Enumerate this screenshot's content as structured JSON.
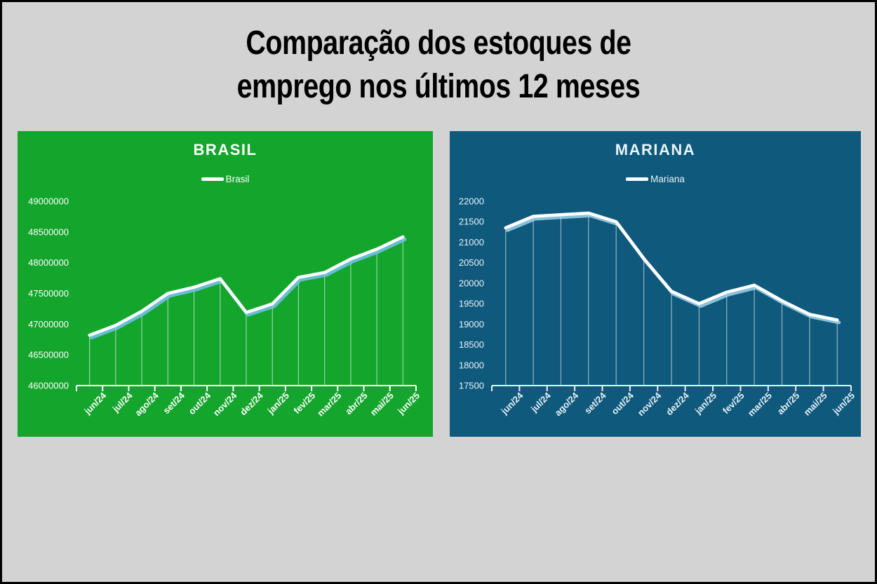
{
  "page": {
    "background": "#d3d3d3",
    "border_color": "#000000"
  },
  "title": {
    "line1": "Comparação dos estoques de",
    "line2": "emprego nos últimos 12 meses",
    "color": "#000000"
  },
  "chart_data": [
    {
      "id": "brasil",
      "type": "line",
      "title": "BRASIL",
      "legend": "Brasil",
      "legend_position": "top",
      "grid": false,
      "categories": [
        "jun/24",
        "jul/24",
        "ago/24",
        "set/24",
        "out/24",
        "nov/24",
        "dez/24",
        "jan/25",
        "fev/25",
        "mar/25",
        "abr/25",
        "mai/25",
        "jun/25"
      ],
      "values": [
        46820000,
        46980000,
        47210000,
        47500000,
        47600000,
        47740000,
        47190000,
        47330000,
        47760000,
        47840000,
        48060000,
        48220000,
        48420000
      ],
      "ylim": [
        46000000,
        49000000
      ],
      "y_ticks": [
        46000000,
        46500000,
        47000000,
        47500000,
        48000000,
        48500000,
        49000000
      ],
      "background": "#14a52d",
      "text_color": "#ffffff",
      "line_color": "#ffffff",
      "shadow_color": "#74c2f0"
    },
    {
      "id": "mariana",
      "type": "line",
      "title": "MARIANA",
      "legend": "Mariana",
      "legend_position": "top",
      "grid": false,
      "categories": [
        "jun/24",
        "jul/24",
        "ago/24",
        "set/24",
        "out/24",
        "nov/24",
        "dez/24",
        "jan/25",
        "fev/25",
        "mar/25",
        "abr/25",
        "mai/25",
        "jun/25"
      ],
      "values": [
        21350,
        21630,
        21670,
        21710,
        21500,
        20600,
        19800,
        19500,
        19780,
        19950,
        19570,
        19240,
        19100
      ],
      "ylim": [
        17500,
        22000
      ],
      "y_ticks": [
        17500,
        18000,
        18500,
        19000,
        19500,
        20000,
        20500,
        21000,
        21500,
        22000
      ],
      "background": "#0f597c",
      "text_color": "#e9f2f8",
      "line_color": "#ffffff",
      "shadow_color": "#9fd2ea"
    }
  ]
}
